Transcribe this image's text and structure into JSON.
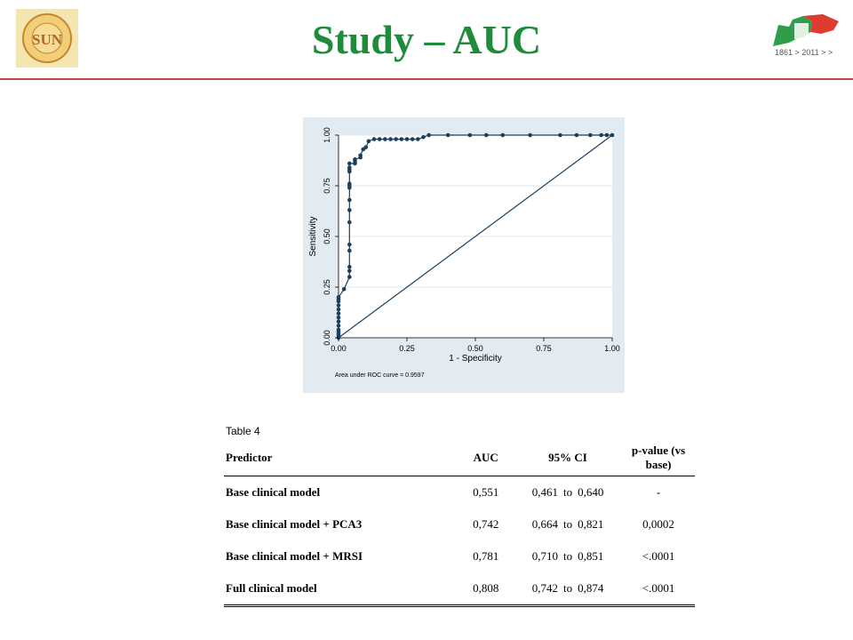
{
  "page": {
    "title": "Study – AUC"
  },
  "logos": {
    "left_text": "SOCIETÀ UROLOGIA NUOVA",
    "left_center": "SUN",
    "right_text": "1861 > 2011 > >"
  },
  "colors": {
    "title": "#1e8c3a",
    "rule": "#b84b3a",
    "chart_bg": "#e2ebf1",
    "series": "#1c3f5f"
  },
  "chart_data": {
    "type": "line",
    "xlabel": "1 - Specificity",
    "ylabel": "Sensitivity",
    "xlim": [
      0,
      1
    ],
    "ylim": [
      0,
      1
    ],
    "xticks": [
      "0.00",
      "0.25",
      "0.50",
      "0.75",
      "1.00"
    ],
    "yticks": [
      "0.00",
      "0.25",
      "0.50",
      "0.75",
      "1.00"
    ],
    "annotation": "Area under ROC curve = 0.9597",
    "grid": true,
    "series": [
      {
        "x": [
          0.0,
          0.0,
          0.0,
          0.0,
          0.0,
          0.0,
          0.0,
          0.0,
          0.0,
          0.0,
          0.0,
          0.0,
          0.0,
          0.0,
          0.02,
          0.04,
          0.04,
          0.04,
          0.04,
          0.04,
          0.04,
          0.04,
          0.04,
          0.04,
          0.04,
          0.04,
          0.04,
          0.04,
          0.04,
          0.04,
          0.06,
          0.06,
          0.06,
          0.08,
          0.08,
          0.09,
          0.1,
          0.11,
          0.13,
          0.15,
          0.17,
          0.19,
          0.21,
          0.23,
          0.25,
          0.27,
          0.29,
          0.31,
          0.33,
          0.4,
          0.48,
          0.54,
          0.6,
          0.7,
          0.81,
          0.87,
          0.92,
          0.96,
          0.98,
          1.0
        ],
        "y": [
          0.0,
          0.01,
          0.02,
          0.03,
          0.04,
          0.06,
          0.08,
          0.1,
          0.12,
          0.14,
          0.16,
          0.18,
          0.19,
          0.2,
          0.24,
          0.3,
          0.33,
          0.35,
          0.43,
          0.46,
          0.57,
          0.63,
          0.68,
          0.74,
          0.75,
          0.76,
          0.82,
          0.83,
          0.84,
          0.86,
          0.86,
          0.87,
          0.88,
          0.89,
          0.9,
          0.93,
          0.94,
          0.97,
          0.98,
          0.98,
          0.98,
          0.98,
          0.98,
          0.98,
          0.98,
          0.98,
          0.98,
          0.99,
          1.0,
          1.0,
          1.0,
          1.0,
          1.0,
          1.0,
          1.0,
          1.0,
          1.0,
          1.0,
          1.0,
          1.0
        ]
      }
    ],
    "reference_line": {
      "from": [
        0,
        0
      ],
      "to": [
        1,
        1
      ]
    }
  },
  "table": {
    "caption": "Table 4",
    "headers": {
      "predictor": "Predictor",
      "auc": "AUC",
      "ci": "95% CI",
      "p": "p-value (vs base)"
    },
    "rows": [
      {
        "predictor": "Base clinical model",
        "auc": "0,551",
        "ci_low": "0,461",
        "ci_to": "to",
        "ci_high": "0,640",
        "p": "-"
      },
      {
        "predictor": "Base clinical model + PCA3",
        "auc": "0,742",
        "ci_low": "0,664",
        "ci_to": "to",
        "ci_high": "0,821",
        "p": "0,0002"
      },
      {
        "predictor": "Base clinical model + MRSI",
        "auc": "0,781",
        "ci_low": "0,710",
        "ci_to": "to",
        "ci_high": "0,851",
        "p": "<.0001"
      },
      {
        "predictor": "Full clinical model",
        "auc": "0,808",
        "ci_low": "0,742",
        "ci_to": "to",
        "ci_high": "0,874",
        "p": "<.0001"
      }
    ]
  }
}
